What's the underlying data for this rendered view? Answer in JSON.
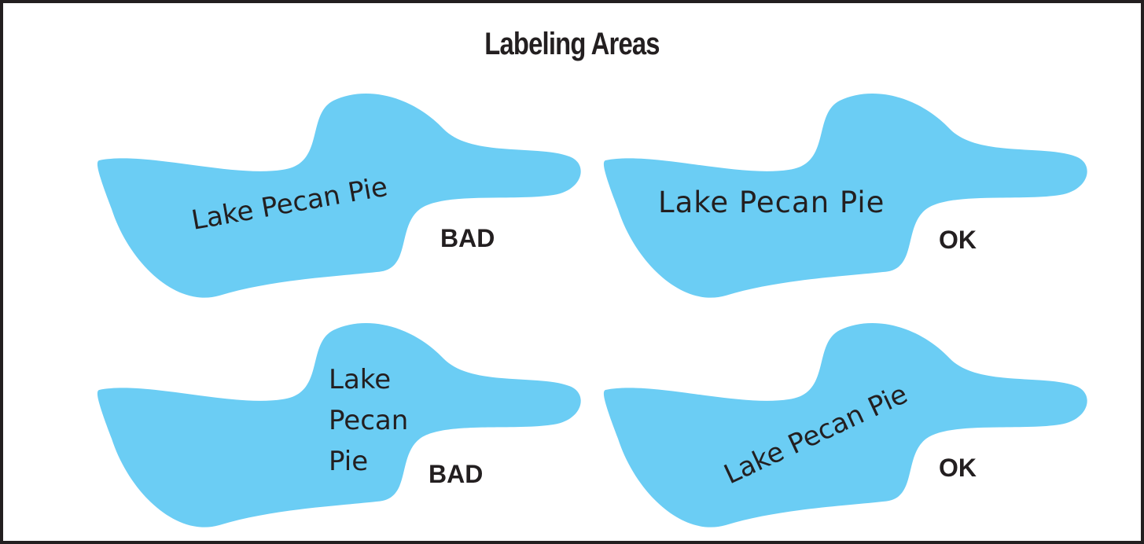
{
  "title": "Labeling Areas",
  "lake_color": "#6bcdf4",
  "text_color": "#231f20",
  "panels": [
    {
      "lake_label": "Lake Pecan Pie",
      "verdict": "BAD"
    },
    {
      "lake_label": "Lake Pecan Pie",
      "verdict": "OK"
    },
    {
      "lake_label_lines": [
        "Lake",
        "Pecan",
        "Pie"
      ],
      "verdict": "BAD"
    },
    {
      "lake_label": "Lake Pecan Pie",
      "verdict": "OK"
    }
  ]
}
